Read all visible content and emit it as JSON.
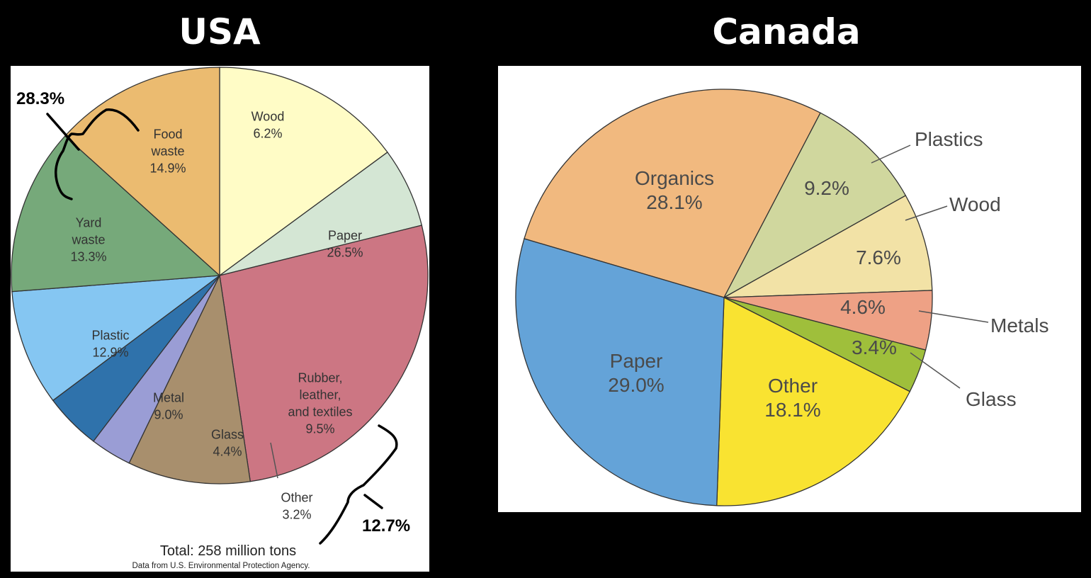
{
  "chart_data": [
    {
      "type": "pie",
      "title": "USA",
      "slices": [
        {
          "label": [
            "Food",
            "waste"
          ],
          "value": 14.9,
          "value_text": "14.9%",
          "color": "#fffcc6"
        },
        {
          "label": [
            "Wood"
          ],
          "value": 6.2,
          "value_text": "6.2%",
          "color": "#d4e6d4"
        },
        {
          "label": [
            "Paper"
          ],
          "value": 26.5,
          "value_text": "26.5%",
          "color": "#cc7683"
        },
        {
          "label": [
            "Rubber,",
            "leather,",
            "and textiles"
          ],
          "value": 9.5,
          "value_text": "9.5%",
          "color": "#a88f6d"
        },
        {
          "label": [
            "Other"
          ],
          "value": 3.2,
          "value_text": "3.2%",
          "color": "#9a9dd5"
        },
        {
          "label": [
            "Glass"
          ],
          "value": 4.4,
          "value_text": "4.4%",
          "color": "#2f72ab"
        },
        {
          "label": [
            "Metal"
          ],
          "value": 9.0,
          "value_text": "9.0%",
          "color": "#85c6f2"
        },
        {
          "label": [
            "Plastic"
          ],
          "value": 12.9,
          "value_text": "12.9%",
          "color": "#76a97a"
        },
        {
          "label": [
            "Yard",
            "waste"
          ],
          "value": 13.3,
          "value_text": "13.3%",
          "color": "#ebbb70"
        }
      ],
      "annotations": [
        {
          "text": "28.3%",
          "groups": [
            "Food waste",
            "Yard waste"
          ]
        },
        {
          "text": "12.7%",
          "groups": [
            "Rubber, leather, and textiles",
            "Other"
          ]
        }
      ],
      "total_text": "Total: 258 million tons",
      "source_text": "Data from U.S. Environmental Protection Agency."
    },
    {
      "type": "pie",
      "title": "Canada",
      "slices": [
        {
          "label": [
            "Organics"
          ],
          "value": 28.1,
          "value_text": "28.1%",
          "color": "#f1b97f"
        },
        {
          "label": [
            "Plastics"
          ],
          "value": 9.2,
          "value_text": "9.2%",
          "color": "#d0d79e"
        },
        {
          "label": [
            "Wood"
          ],
          "value": 7.6,
          "value_text": "7.6%",
          "color": "#f2e2a6"
        },
        {
          "label": [
            "Metals"
          ],
          "value": 4.6,
          "value_text": "4.6%",
          "color": "#eea185"
        },
        {
          "label": [
            "Glass"
          ],
          "value": 3.4,
          "value_text": "3.4%",
          "color": "#9fbf3b"
        },
        {
          "label": [
            "Other"
          ],
          "value": 18.1,
          "value_text": "18.1%",
          "color": "#f9e331"
        },
        {
          "label": [
            "Paper"
          ],
          "value": 29.0,
          "value_text": "29.0%",
          "color": "#64a3d8"
        }
      ]
    }
  ]
}
